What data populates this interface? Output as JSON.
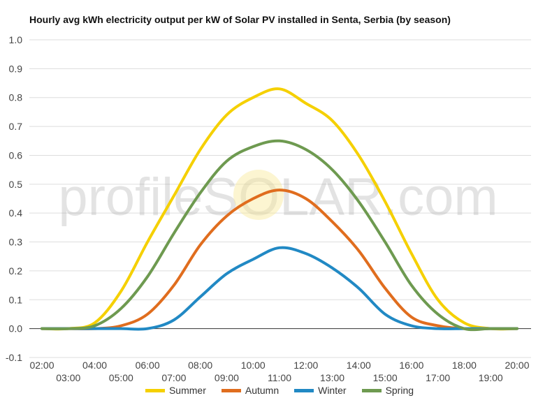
{
  "chart_data": {
    "type": "line",
    "title": "Hourly avg kWh electricity output per kW of Solar PV installed in Senta, Serbia (by season)",
    "watermark": "profileSOLAR.com",
    "xlabel": "",
    "ylabel": "",
    "ylim": [
      -0.1,
      1.0
    ],
    "yticks": [
      "-0.1",
      "0.0",
      "0.1",
      "0.2",
      "0.3",
      "0.4",
      "0.5",
      "0.6",
      "0.7",
      "0.8",
      "0.9",
      "1.0"
    ],
    "x": [
      "02:00",
      "03:00",
      "04:00",
      "05:00",
      "06:00",
      "07:00",
      "08:00",
      "09:00",
      "10:00",
      "11:00",
      "12:00",
      "13:00",
      "14:00",
      "15:00",
      "16:00",
      "17:00",
      "18:00",
      "19:00",
      "20:00"
    ],
    "grid": true,
    "legend_position": "bottom",
    "series": [
      {
        "name": "Summer",
        "color": "#f5d000",
        "values": [
          0.0,
          0.0,
          0.02,
          0.13,
          0.3,
          0.46,
          0.62,
          0.74,
          0.8,
          0.83,
          0.78,
          0.72,
          0.6,
          0.44,
          0.26,
          0.1,
          0.02,
          0.0,
          0.0
        ]
      },
      {
        "name": "Autumn",
        "color": "#e06d1e",
        "values": [
          0.0,
          0.0,
          0.0,
          0.01,
          0.05,
          0.15,
          0.29,
          0.39,
          0.45,
          0.48,
          0.45,
          0.37,
          0.27,
          0.14,
          0.04,
          0.01,
          0.0,
          0.0,
          0.0
        ]
      },
      {
        "name": "Winter",
        "color": "#2189c4",
        "values": [
          0.0,
          0.0,
          0.0,
          0.0,
          0.0,
          0.03,
          0.11,
          0.19,
          0.24,
          0.28,
          0.26,
          0.21,
          0.14,
          0.05,
          0.01,
          0.0,
          0.0,
          0.0,
          0.0
        ]
      },
      {
        "name": "Spring",
        "color": "#6e9a50",
        "values": [
          0.0,
          0.0,
          0.01,
          0.07,
          0.18,
          0.33,
          0.47,
          0.58,
          0.63,
          0.65,
          0.62,
          0.55,
          0.44,
          0.3,
          0.15,
          0.05,
          0.0,
          0.0,
          0.0
        ]
      }
    ]
  }
}
